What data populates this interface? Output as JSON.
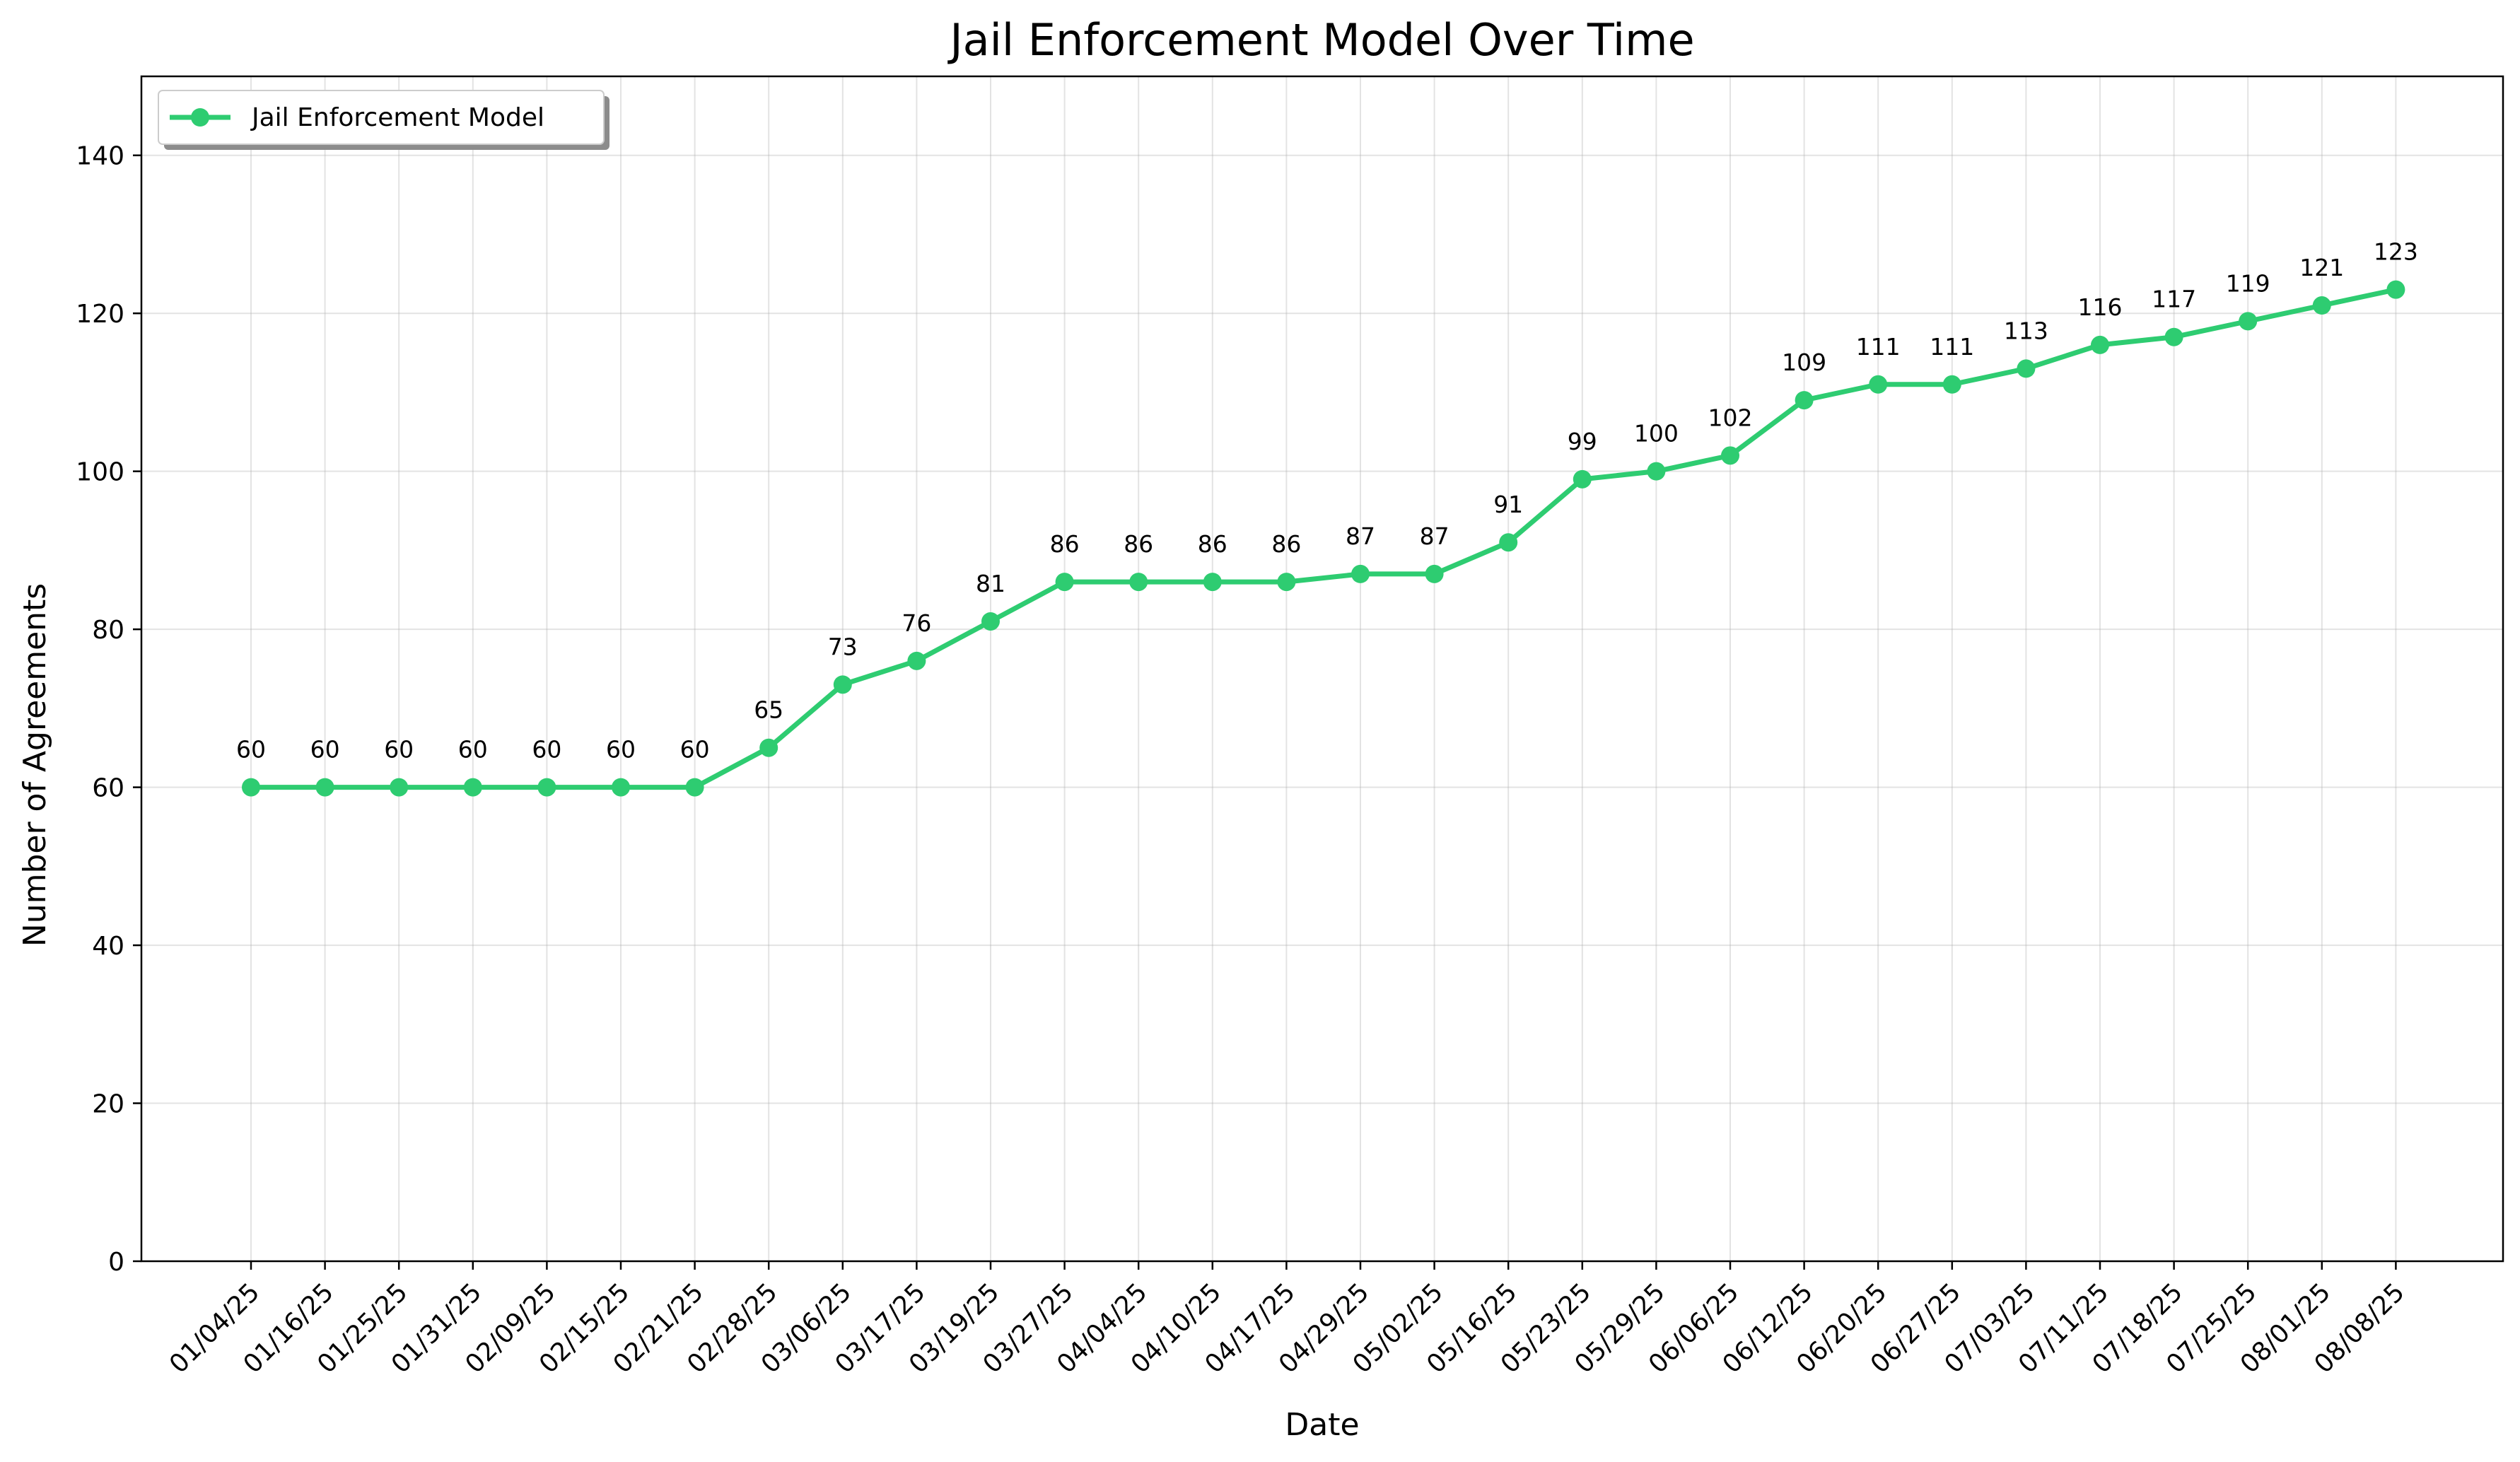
{
  "chart_data": {
    "type": "line",
    "title": "Jail Enforcement Model Over Time",
    "xlabel": "Date",
    "ylabel": "Number of Agreements",
    "ylim": [
      0,
      150
    ],
    "yticks": [
      0,
      20,
      40,
      60,
      80,
      100,
      120,
      140
    ],
    "grid": true,
    "legend_position": "upper-left",
    "categories": [
      "01/04/25",
      "01/16/25",
      "01/25/25",
      "01/31/25",
      "02/09/25",
      "02/15/25",
      "02/21/25",
      "02/28/25",
      "03/06/25",
      "03/17/25",
      "03/19/25",
      "03/27/25",
      "04/04/25",
      "04/10/25",
      "04/17/25",
      "04/29/25",
      "05/02/25",
      "05/16/25",
      "05/23/25",
      "05/29/25",
      "06/06/25",
      "06/12/25",
      "06/20/25",
      "06/27/25",
      "07/03/25",
      "07/11/25",
      "07/18/25",
      "07/25/25",
      "08/01/25",
      "08/08/25"
    ],
    "series": [
      {
        "name": "Jail Enforcement Model",
        "color": "#2ecc71",
        "marker": "circle",
        "values": [
          60,
          60,
          60,
          60,
          60,
          60,
          60,
          65,
          73,
          76,
          81,
          86,
          86,
          86,
          86,
          87,
          87,
          91,
          99,
          100,
          102,
          109,
          111,
          111,
          113,
          116,
          117,
          119,
          121,
          123
        ]
      }
    ]
  }
}
